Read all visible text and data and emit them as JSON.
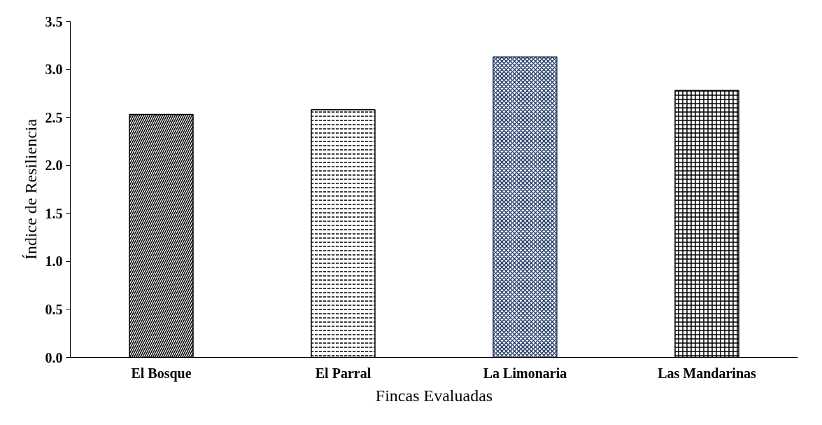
{
  "chart_data": {
    "type": "bar",
    "xlabel": "Fincas Evaluadas",
    "ylabel": "Índice de Resiliencia",
    "categories": [
      "El Bosque",
      "El Parral",
      "La Limonaria",
      "Las Mandarinas"
    ],
    "values": [
      2.53,
      2.58,
      3.13,
      2.78
    ],
    "colors": [
      "#000000",
      "#000000",
      "#1f3864",
      "#000000"
    ],
    "ylim": [
      0,
      3.5
    ],
    "yticks": [
      {
        "value": 0,
        "label": "0.0"
      },
      {
        "value": 0.5,
        "label": "0.5"
      },
      {
        "value": 1,
        "label": "1.0"
      },
      {
        "value": 1.5,
        "label": "1.5"
      },
      {
        "value": 2,
        "label": "2.0"
      },
      {
        "value": 2.5,
        "label": "2.5"
      },
      {
        "value": 3,
        "label": "3.0"
      },
      {
        "value": 3.5,
        "label": "3.5"
      }
    ],
    "grid": false
  }
}
